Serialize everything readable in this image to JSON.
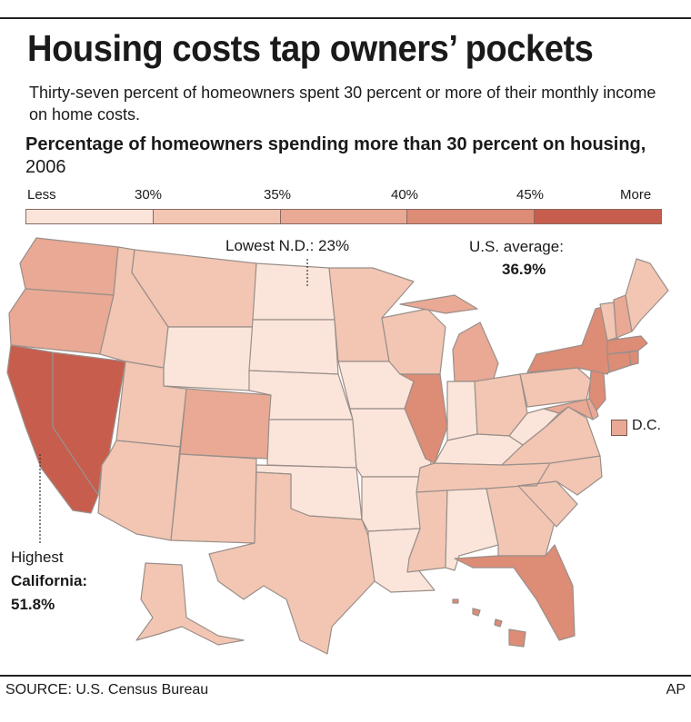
{
  "title": "Housing costs tap owners’ pockets",
  "subtitle": "Thirty-seven percent of homeowners spent 30 percent or more of their monthly income on home costs.",
  "map_heading": {
    "bold": "Percentage of homeowners spending more than 30 percent on housing,",
    "year": " 2006"
  },
  "legend": {
    "labels": [
      "Less",
      "30%",
      "35%",
      "40%",
      "45%",
      "More"
    ],
    "colors": [
      "#fbe5da",
      "#f2c6b3",
      "#e9a994",
      "#dd8c76",
      "#c75e4d"
    ]
  },
  "annotations": {
    "lowest": "Lowest N.D.: 23%",
    "us_average_label": "U.S. average:",
    "us_average_value": "36.9%",
    "highest_label": "Highest",
    "highest_state": "California:",
    "highest_value": "51.8%",
    "dc_label": "D.C."
  },
  "state_shading": {
    "lowest_bin_less_than_30": [
      "WY",
      "ND",
      "SD",
      "NE",
      "KS",
      "OK",
      "IA",
      "MO",
      "AR",
      "LA",
      "IN",
      "KY",
      "WV",
      "AL"
    ],
    "bin_30_to_35": [
      "MT",
      "ID",
      "UT",
      "NM",
      "AZ",
      "TX",
      "MN",
      "WI",
      "OH",
      "PA",
      "VA",
      "NC",
      "SC",
      "GA",
      "TN",
      "MS",
      "ME",
      "VT",
      "AK"
    ],
    "bin_35_to_40": [
      "WA",
      "OR",
      "CO",
      "MI",
      "NH",
      "DE",
      "MD",
      "DC"
    ],
    "bin_40_to_45": [
      "IL",
      "NY",
      "MA",
      "RI",
      "CT",
      "FL",
      "NJ",
      "HI"
    ],
    "bin_45_and_more": [
      "CA",
      "NV"
    ]
  },
  "footer": {
    "source": "SOURCE: U.S. Census Bureau",
    "credit": "AP"
  }
}
